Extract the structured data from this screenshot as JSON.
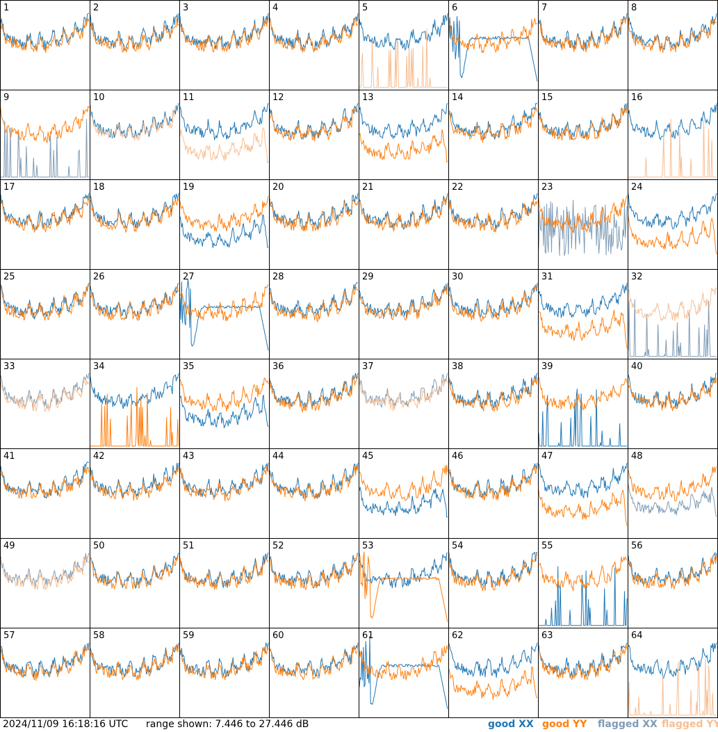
{
  "footer": {
    "timestamp": "2024/11/09 16:18:16 UTC",
    "range_text": "range shown: 7.446 to 27.446 dB"
  },
  "colors": {
    "good_xx": "#1f77b4",
    "good_yy": "#ff7f0e",
    "flagged_xx": "#7f9cb5",
    "flagged_yy": "#f7be92",
    "frame": "#000000"
  },
  "legend": [
    {
      "label": "good XX",
      "color": "#1f77b4"
    },
    {
      "label": "good YY",
      "color": "#ff7f0e"
    },
    {
      "label": "flagged XX",
      "color": "#7f9cb5"
    },
    {
      "label": "flagged YY",
      "color": "#f7be92"
    }
  ],
  "chart_data": {
    "type": "line",
    "layout": "small-multiples 8x8",
    "y_range_db": [
      7.446,
      27.446
    ],
    "series_types": [
      "good XX",
      "good YY",
      "flagged XX",
      "flagged YY"
    ],
    "panels": [
      {
        "id": "1",
        "xx": "good",
        "yy": "good",
        "xx_shape": "std",
        "yy_shape": "std"
      },
      {
        "id": "2",
        "xx": "good",
        "yy": "good",
        "xx_shape": "std",
        "yy_shape": "std"
      },
      {
        "id": "3",
        "xx": "good",
        "yy": "good",
        "xx_shape": "std",
        "yy_shape": "std"
      },
      {
        "id": "4",
        "xx": "good",
        "yy": "good",
        "xx_shape": "std",
        "yy_shape": "std"
      },
      {
        "id": "5",
        "xx": "good",
        "yy": "flagged",
        "xx_shape": "std",
        "yy_shape": "spike"
      },
      {
        "id": "6",
        "xx": "good",
        "yy": "good",
        "xx_shape": "hump",
        "yy_shape": "std"
      },
      {
        "id": "7",
        "xx": "good",
        "yy": "good",
        "xx_shape": "std",
        "yy_shape": "std"
      },
      {
        "id": "8",
        "xx": "good",
        "yy": "good",
        "xx_shape": "std",
        "yy_shape": "std"
      },
      {
        "id": "9",
        "xx": "flagged",
        "yy": "good",
        "xx_shape": "spike",
        "yy_shape": "std"
      },
      {
        "id": "10",
        "xx": "good",
        "yy": "flagged",
        "xx_shape": "std",
        "yy_shape": "std"
      },
      {
        "id": "11",
        "xx": "good",
        "yy": "flagged",
        "xx_shape": "std",
        "yy_shape": "low"
      },
      {
        "id": "12",
        "xx": "good",
        "yy": "good",
        "xx_shape": "std",
        "yy_shape": "std"
      },
      {
        "id": "13",
        "xx": "good",
        "yy": "good",
        "xx_shape": "std",
        "yy_shape": "low"
      },
      {
        "id": "14",
        "xx": "good",
        "yy": "good",
        "xx_shape": "std",
        "yy_shape": "std"
      },
      {
        "id": "15",
        "xx": "good",
        "yy": "good",
        "xx_shape": "std",
        "yy_shape": "std"
      },
      {
        "id": "16",
        "xx": "good",
        "yy": "flagged",
        "xx_shape": "std",
        "yy_shape": "spike"
      },
      {
        "id": "17",
        "xx": "good",
        "yy": "good",
        "xx_shape": "std",
        "yy_shape": "std"
      },
      {
        "id": "18",
        "xx": "good",
        "yy": "good",
        "xx_shape": "std",
        "yy_shape": "std"
      },
      {
        "id": "19",
        "xx": "good",
        "yy": "good",
        "xx_shape": "low",
        "yy_shape": "std"
      },
      {
        "id": "20",
        "xx": "good",
        "yy": "good",
        "xx_shape": "std",
        "yy_shape": "std"
      },
      {
        "id": "21",
        "xx": "good",
        "yy": "good",
        "xx_shape": "std",
        "yy_shape": "std"
      },
      {
        "id": "22",
        "xx": "good",
        "yy": "good",
        "xx_shape": "std",
        "yy_shape": "std"
      },
      {
        "id": "23",
        "xx": "flagged",
        "yy": "good",
        "xx_shape": "noisy",
        "yy_shape": "std"
      },
      {
        "id": "24",
        "xx": "good",
        "yy": "good",
        "xx_shape": "std",
        "yy_shape": "low"
      },
      {
        "id": "25",
        "xx": "good",
        "yy": "good",
        "xx_shape": "std",
        "yy_shape": "std"
      },
      {
        "id": "26",
        "xx": "good",
        "yy": "good",
        "xx_shape": "std",
        "yy_shape": "std"
      },
      {
        "id": "27",
        "xx": "good",
        "yy": "good",
        "xx_shape": "hump",
        "yy_shape": "std"
      },
      {
        "id": "28",
        "xx": "good",
        "yy": "good",
        "xx_shape": "std",
        "yy_shape": "std"
      },
      {
        "id": "29",
        "xx": "good",
        "yy": "good",
        "xx_shape": "std",
        "yy_shape": "std"
      },
      {
        "id": "30",
        "xx": "good",
        "yy": "good",
        "xx_shape": "std",
        "yy_shape": "std"
      },
      {
        "id": "31",
        "xx": "good",
        "yy": "good",
        "xx_shape": "std",
        "yy_shape": "low"
      },
      {
        "id": "32",
        "xx": "flagged",
        "yy": "flagged",
        "xx_shape": "spike",
        "yy_shape": "std"
      },
      {
        "id": "33",
        "xx": "flagged",
        "yy": "flagged",
        "xx_shape": "std",
        "yy_shape": "std"
      },
      {
        "id": "34",
        "xx": "good",
        "yy": "good",
        "xx_shape": "std",
        "yy_shape": "spike"
      },
      {
        "id": "35",
        "xx": "good",
        "yy": "good",
        "xx_shape": "low",
        "yy_shape": "std"
      },
      {
        "id": "36",
        "xx": "good",
        "yy": "good",
        "xx_shape": "std",
        "yy_shape": "std"
      },
      {
        "id": "37",
        "xx": "flagged",
        "yy": "flagged",
        "xx_shape": "std",
        "yy_shape": "std"
      },
      {
        "id": "38",
        "xx": "good",
        "yy": "good",
        "xx_shape": "std",
        "yy_shape": "std"
      },
      {
        "id": "39",
        "xx": "good",
        "yy": "good",
        "xx_shape": "spike",
        "yy_shape": "std"
      },
      {
        "id": "40",
        "xx": "good",
        "yy": "good",
        "xx_shape": "std",
        "yy_shape": "std"
      },
      {
        "id": "41",
        "xx": "good",
        "yy": "good",
        "xx_shape": "std",
        "yy_shape": "std"
      },
      {
        "id": "42",
        "xx": "good",
        "yy": "good",
        "xx_shape": "std",
        "yy_shape": "std"
      },
      {
        "id": "43",
        "xx": "good",
        "yy": "good",
        "xx_shape": "std",
        "yy_shape": "std"
      },
      {
        "id": "44",
        "xx": "good",
        "yy": "good",
        "xx_shape": "std",
        "yy_shape": "std"
      },
      {
        "id": "45",
        "xx": "good",
        "yy": "good",
        "xx_shape": "low",
        "yy_shape": "std"
      },
      {
        "id": "46",
        "xx": "good",
        "yy": "good",
        "xx_shape": "std",
        "yy_shape": "std"
      },
      {
        "id": "47",
        "xx": "good",
        "yy": "good",
        "xx_shape": "std",
        "yy_shape": "low"
      },
      {
        "id": "48",
        "xx": "flagged",
        "yy": "good",
        "xx_shape": "low",
        "yy_shape": "std"
      },
      {
        "id": "49",
        "xx": "flagged",
        "yy": "flagged",
        "xx_shape": "std",
        "yy_shape": "std"
      },
      {
        "id": "50",
        "xx": "good",
        "yy": "good",
        "xx_shape": "std",
        "yy_shape": "std"
      },
      {
        "id": "51",
        "xx": "good",
        "yy": "good",
        "xx_shape": "std",
        "yy_shape": "std"
      },
      {
        "id": "52",
        "xx": "good",
        "yy": "good",
        "xx_shape": "std",
        "yy_shape": "std"
      },
      {
        "id": "53",
        "xx": "good",
        "yy": "good",
        "xx_shape": "std",
        "yy_shape": "hump"
      },
      {
        "id": "54",
        "xx": "good",
        "yy": "good",
        "xx_shape": "std",
        "yy_shape": "std"
      },
      {
        "id": "55",
        "xx": "good",
        "yy": "good",
        "xx_shape": "spike",
        "yy_shape": "std"
      },
      {
        "id": "56",
        "xx": "good",
        "yy": "good",
        "xx_shape": "std",
        "yy_shape": "std"
      },
      {
        "id": "57",
        "xx": "good",
        "yy": "good",
        "xx_shape": "std",
        "yy_shape": "std"
      },
      {
        "id": "58",
        "xx": "good",
        "yy": "good",
        "xx_shape": "std",
        "yy_shape": "std"
      },
      {
        "id": "59",
        "xx": "good",
        "yy": "good",
        "xx_shape": "std",
        "yy_shape": "std"
      },
      {
        "id": "60",
        "xx": "good",
        "yy": "good",
        "xx_shape": "std",
        "yy_shape": "std"
      },
      {
        "id": "61",
        "xx": "good",
        "yy": "good",
        "xx_shape": "hump",
        "yy_shape": "std"
      },
      {
        "id": "62",
        "xx": "good",
        "yy": "good",
        "xx_shape": "std",
        "yy_shape": "low"
      },
      {
        "id": "63",
        "xx": "good",
        "yy": "good",
        "xx_shape": "std",
        "yy_shape": "std"
      },
      {
        "id": "64",
        "xx": "good",
        "yy": "flagged",
        "xx_shape": "std",
        "yy_shape": "spike"
      }
    ]
  }
}
